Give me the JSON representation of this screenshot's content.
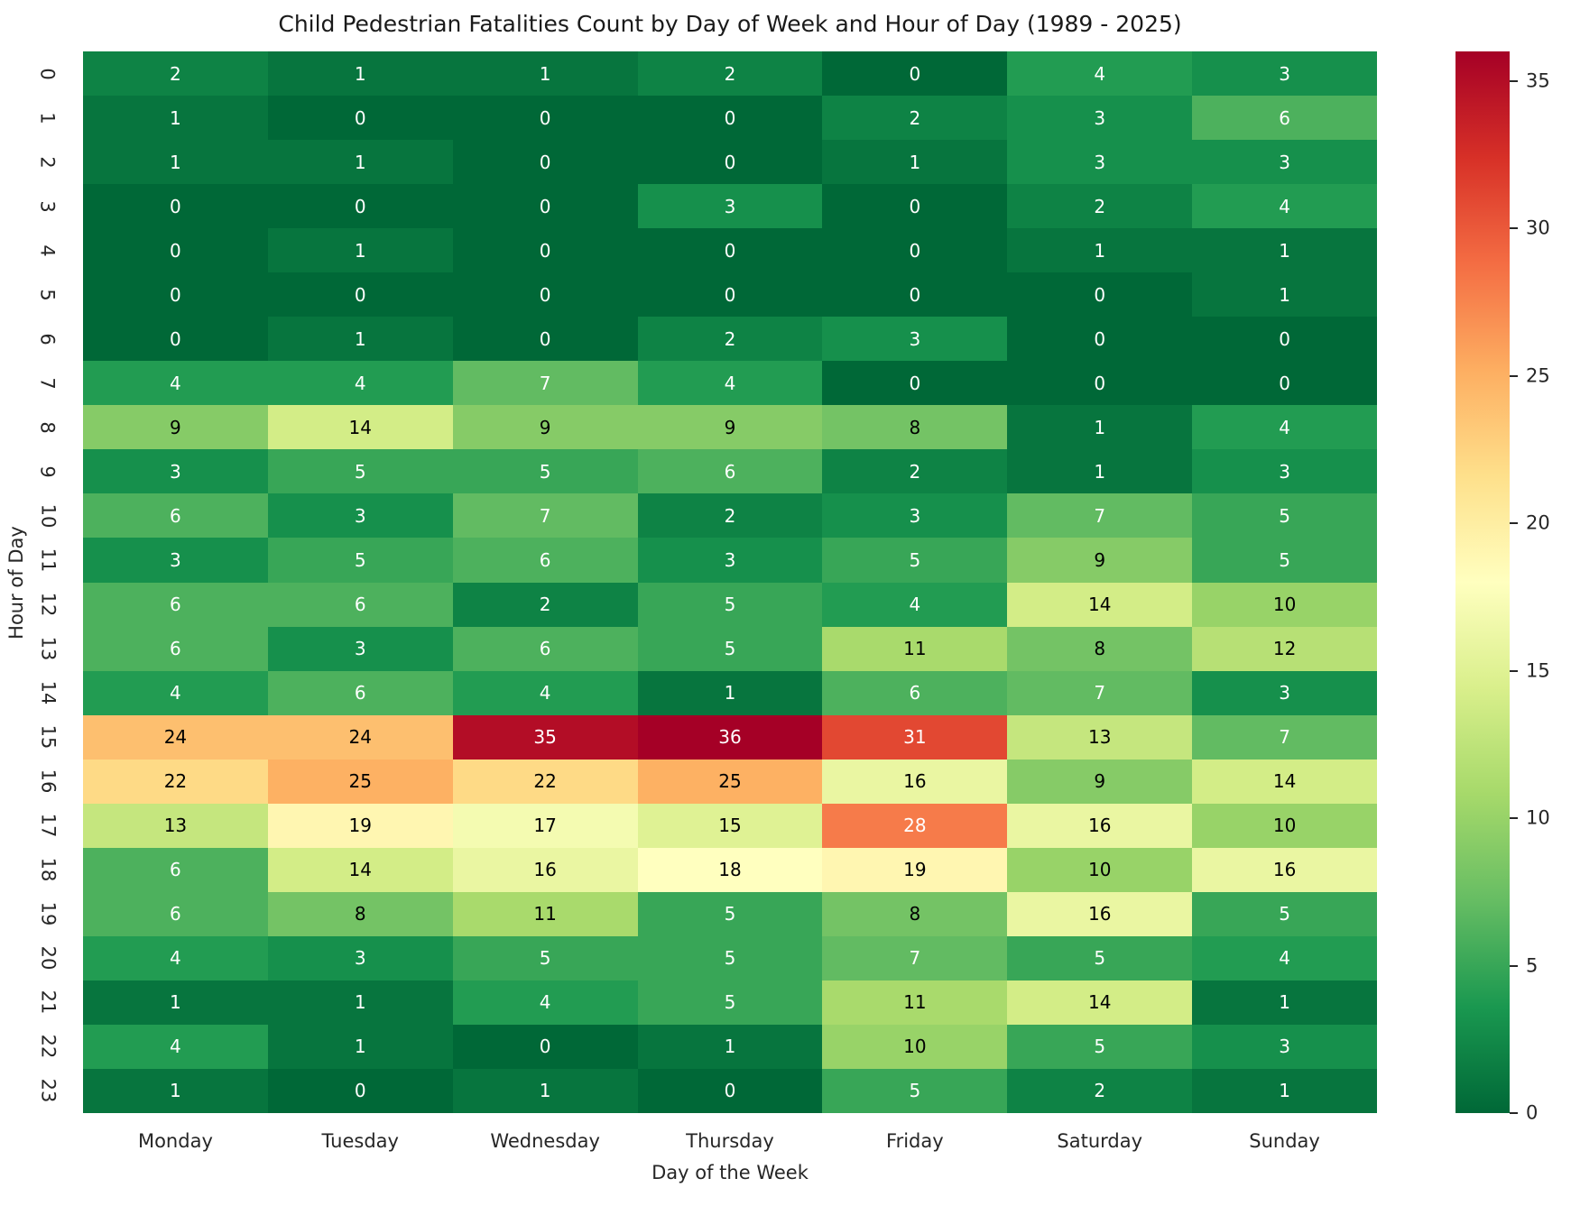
{
  "chart_data": {
    "type": "heatmap",
    "title": "Child Pedestrian Fatalities Count by Day of Week and Hour of Day (1989 - 2025)",
    "xlabel": "Day of the Week",
    "ylabel": "Hour of Day",
    "columns": [
      "Monday",
      "Tuesday",
      "Wednesday",
      "Thursday",
      "Friday",
      "Saturday",
      "Sunday"
    ],
    "rows": [
      "0",
      "1",
      "2",
      "3",
      "4",
      "5",
      "6",
      "7",
      "8",
      "9",
      "10",
      "11",
      "12",
      "13",
      "14",
      "15",
      "16",
      "17",
      "18",
      "19",
      "20",
      "21",
      "22",
      "23"
    ],
    "values": [
      [
        2,
        1,
        1,
        2,
        0,
        4,
        3
      ],
      [
        1,
        0,
        0,
        0,
        2,
        3,
        6
      ],
      [
        1,
        1,
        0,
        0,
        1,
        3,
        3
      ],
      [
        0,
        0,
        0,
        3,
        0,
        2,
        4
      ],
      [
        0,
        1,
        0,
        0,
        0,
        1,
        1
      ],
      [
        0,
        0,
        0,
        0,
        0,
        0,
        1
      ],
      [
        0,
        1,
        0,
        2,
        3,
        0,
        0
      ],
      [
        4,
        4,
        7,
        4,
        0,
        0,
        0
      ],
      [
        9,
        14,
        9,
        9,
        8,
        1,
        4
      ],
      [
        3,
        5,
        5,
        6,
        2,
        1,
        3
      ],
      [
        6,
        3,
        7,
        2,
        3,
        7,
        5
      ],
      [
        3,
        5,
        6,
        3,
        5,
        9,
        5
      ],
      [
        6,
        6,
        2,
        5,
        4,
        14,
        10
      ],
      [
        6,
        3,
        6,
        5,
        11,
        8,
        12
      ],
      [
        4,
        6,
        4,
        1,
        6,
        7,
        3
      ],
      [
        24,
        24,
        35,
        36,
        31,
        13,
        7
      ],
      [
        22,
        25,
        22,
        25,
        16,
        9,
        14
      ],
      [
        13,
        19,
        17,
        15,
        28,
        16,
        10
      ],
      [
        6,
        14,
        16,
        18,
        19,
        10,
        16
      ],
      [
        6,
        8,
        11,
        5,
        8,
        16,
        5
      ],
      [
        4,
        3,
        5,
        5,
        7,
        5,
        4
      ],
      [
        1,
        1,
        4,
        5,
        11,
        14,
        1
      ],
      [
        4,
        1,
        0,
        1,
        10,
        5,
        3
      ],
      [
        1,
        0,
        1,
        0,
        5,
        2,
        1
      ]
    ],
    "vmin": 0,
    "vmax": 36,
    "colormap_name": "RdYlGn_r",
    "colormap_stops": [
      "#006837",
      "#1a9850",
      "#66bd63",
      "#a6d96a",
      "#d9ef8b",
      "#ffffbf",
      "#fee08b",
      "#fdae61",
      "#f46d43",
      "#d73027",
      "#a50026"
    ],
    "colorbar_ticks": [
      0,
      5,
      10,
      15,
      20,
      25,
      30,
      35
    ],
    "legend_position": "right",
    "annotation_color_dark_cells": "#ffffff",
    "annotation_color_light_cells": "#000000",
    "tick_label_color": "#262626",
    "title_color": "#1a1a1a"
  }
}
